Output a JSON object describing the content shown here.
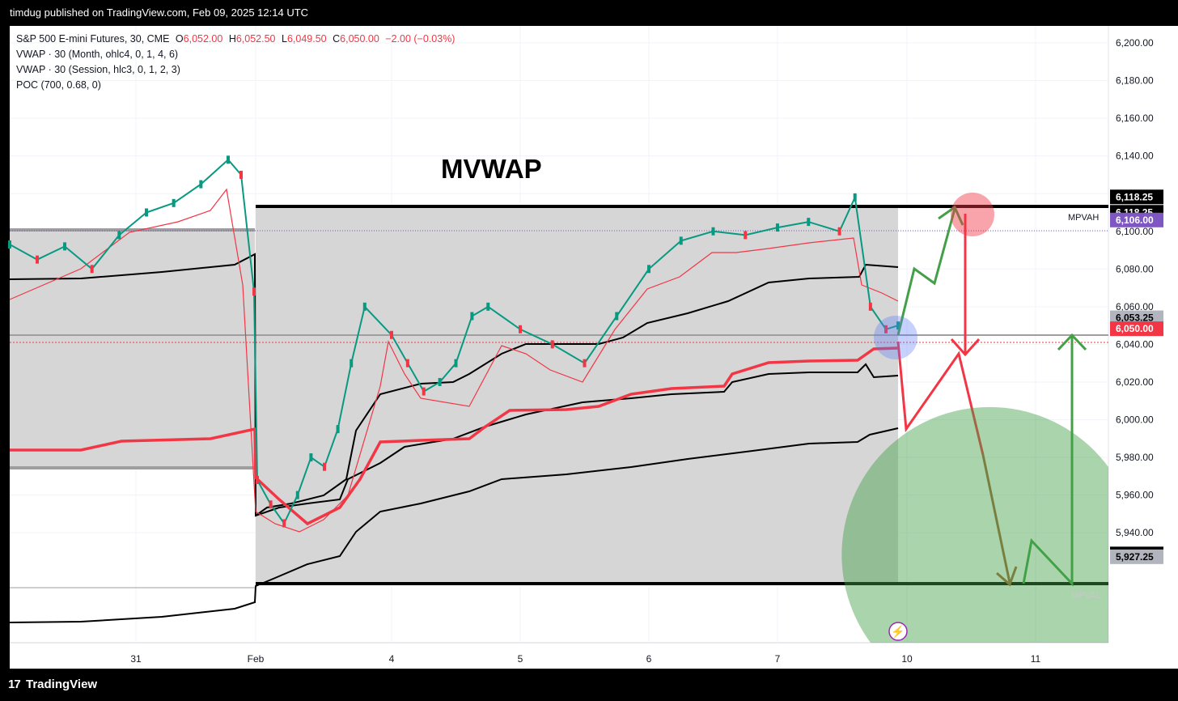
{
  "publish_line": "timdug published on TradingView.com, Feb 09, 2025 12:14 UTC",
  "brand": "TradingView",
  "legend": {
    "symbol": "S&P 500 E-mini Futures, 30, CME",
    "o_label": "O",
    "o": "6,052.00",
    "h_label": "H",
    "h": "6,052.50",
    "l_label": "L",
    "l": "6,049.50",
    "c_label": "C",
    "c": "6,050.00",
    "change": "−2.00 (−0.03%)",
    "lines": [
      "VWAP · 30 (Month, ohlc4, 0, 1, 4, 6)",
      "VWAP · 30 (Session, hlc3, 0, 1, 2, 3)",
      "POC (700, 0.68, 0)"
    ]
  },
  "annotation": "MVWAP",
  "mpvah": "MPVAH",
  "mpval": "MPVAL",
  "chart_data": {
    "type": "line",
    "symbol": "S&P 500 E-mini Futures",
    "interval": "30",
    "x_ticks": [
      "31",
      "Feb",
      "4",
      "5",
      "6",
      "7",
      "10",
      "11"
    ],
    "y_ticks": [
      5940,
      5960,
      5980,
      6000,
      6020,
      6040,
      6060,
      6080,
      6100,
      6120,
      6140,
      6160,
      6180,
      6200
    ],
    "ylim": [
      5920,
      6210
    ],
    "y_tick_labels": [
      "5,940.00",
      "5,960.00",
      "5,980.00",
      "6,000.00",
      "6,020.00",
      "6,040.00",
      "6,060.00",
      "6,080.00",
      "6,100.00",
      "6,120.00",
      "6,140.00",
      "6,160.00",
      "6,180.00",
      "6,200.00"
    ],
    "price_labels": [
      {
        "value": 6118.25,
        "text": "6,118.25",
        "bg": "#000000",
        "fg": "#ffffff"
      },
      {
        "value": 6118.25,
        "text": "6,118.25",
        "bg": "#000000",
        "fg": "#ffffff"
      },
      {
        "value": 6106.0,
        "text": "6,106.00",
        "bg": "#7e57c2",
        "fg": "#ffffff"
      },
      {
        "value": 6053.25,
        "text": "6,053.25",
        "bg": "#b2b5be",
        "fg": "#000000"
      },
      {
        "value": 6050.0,
        "text": "6,050.00",
        "bg": "#f23645",
        "fg": "#ffffff"
      },
      {
        "value": 5928.75,
        "text": "5,928.75",
        "bg": "#000000",
        "fg": "#ffffff"
      },
      {
        "value": 5927.25,
        "text": "5,927.25",
        "bg": "#b2b5be",
        "fg": "#000000"
      }
    ],
    "levels": {
      "mpvah": 6118.25,
      "mpval": 5928.75,
      "poc": 6106.0,
      "session_vwap": 6053.25,
      "last": 6050.0
    },
    "price_path": [
      [
        "2025-01-30 18:00",
        6093
      ],
      [
        "2025-01-30 21:00",
        6085
      ],
      [
        "2025-01-31 00:00",
        6092
      ],
      [
        "2025-01-31 03:00",
        6080
      ],
      [
        "2025-01-31 06:00",
        6098
      ],
      [
        "2025-01-31 09:00",
        6110
      ],
      [
        "2025-01-31 12:00",
        6115
      ],
      [
        "2025-01-31 15:00",
        6125
      ],
      [
        "2025-01-31 18:00",
        6138
      ],
      [
        "2025-01-31 21:00",
        6130
      ],
      [
        "2025-02-01 00:00",
        6068
      ],
      [
        "2025-02-02 18:00",
        5968
      ],
      [
        "2025-02-02 21:00",
        5955
      ],
      [
        "2025-02-03 00:00",
        5945
      ],
      [
        "2025-02-03 03:00",
        5960
      ],
      [
        "2025-02-03 06:00",
        5980
      ],
      [
        "2025-02-03 09:00",
        5975
      ],
      [
        "2025-02-03 12:00",
        5995
      ],
      [
        "2025-02-03 15:00",
        6030
      ],
      [
        "2025-02-03 18:00",
        6060
      ],
      [
        "2025-02-04 00:00",
        6045
      ],
      [
        "2025-02-04 03:00",
        6030
      ],
      [
        "2025-02-04 06:00",
        6015
      ],
      [
        "2025-02-04 09:00",
        6020
      ],
      [
        "2025-02-04 12:00",
        6030
      ],
      [
        "2025-02-04 15:00",
        6055
      ],
      [
        "2025-02-04 18:00",
        6060
      ],
      [
        "2025-02-05 00:00",
        6048
      ],
      [
        "2025-02-05 06:00",
        6040
      ],
      [
        "2025-02-05 12:00",
        6030
      ],
      [
        "2025-02-05 18:00",
        6055
      ],
      [
        "2025-02-06 00:00",
        6080
      ],
      [
        "2025-02-06 06:00",
        6095
      ],
      [
        "2025-02-06 12:00",
        6100
      ],
      [
        "2025-02-06 18:00",
        6098
      ],
      [
        "2025-02-07 00:00",
        6102
      ],
      [
        "2025-02-07 06:00",
        6105
      ],
      [
        "2025-02-07 12:00",
        6100
      ],
      [
        "2025-02-07 15:00",
        6118
      ],
      [
        "2025-02-07 18:00",
        6060
      ],
      [
        "2025-02-07 21:00",
        6048
      ],
      [
        "2025-02-09 18:00",
        6050
      ]
    ]
  }
}
